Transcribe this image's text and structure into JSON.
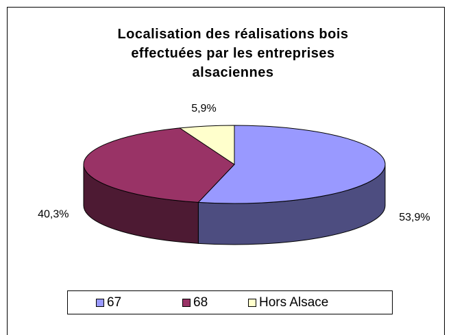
{
  "chart_data": {
    "type": "pie3d",
    "title": "Localisation des réalisations bois effectuées par les entreprises alsaciennes",
    "categories": [
      "67",
      "68",
      "Hors Alsace"
    ],
    "values": [
      53.9,
      40.3,
      5.9
    ],
    "value_labels": [
      "53,9%",
      "40,3%",
      "5,9%"
    ],
    "colors": [
      "#9999ff",
      "#993366",
      "#ffffcc"
    ],
    "legend": "bottom"
  }
}
